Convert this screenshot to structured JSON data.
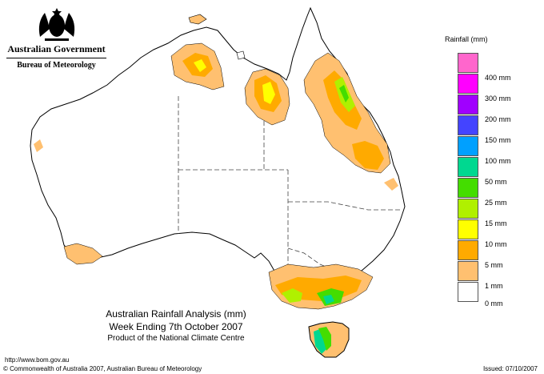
{
  "header": {
    "government": "Australian Government",
    "bureau": "Bureau of Meteorology"
  },
  "legend": {
    "title": "Rainfall (mm)",
    "items": [
      {
        "label": "400 mm",
        "color": "#ff66cc"
      },
      {
        "label": "300 mm",
        "color": "#ff00ff"
      },
      {
        "label": "200 mm",
        "color": "#a000ff"
      },
      {
        "label": "150 mm",
        "color": "#4444ff"
      },
      {
        "label": "100 mm",
        "color": "#00a0ff"
      },
      {
        "label": "50 mm",
        "color": "#00d890"
      },
      {
        "label": "25 mm",
        "color": "#44dd00"
      },
      {
        "label": "15 mm",
        "color": "#b0f000"
      },
      {
        "label": "10 mm",
        "color": "#ffff00"
      },
      {
        "label": "5 mm",
        "color": "#ffaa00"
      },
      {
        "label": "1 mm",
        "color": "#ffc070"
      },
      {
        "label": "0 mm",
        "color": "#ffffff"
      }
    ]
  },
  "title": {
    "line1": "Australian Rainfall Analysis (mm)",
    "line2": "Week Ending 7th October 2007",
    "line3": "Product of the National Climate Centre"
  },
  "footer": {
    "url": "http://www.bom.gov.au",
    "copyright": "© Commonwealth of Australia 2007, Australian Bureau of Meteorology",
    "issued": "Issued: 07/10/2007"
  }
}
